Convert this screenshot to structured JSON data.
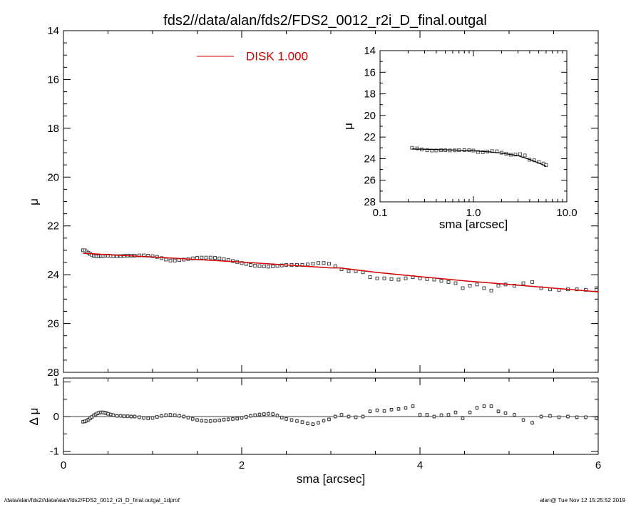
{
  "title": "fds2//data/alan/fds2/FDS2_0012_r2i_D_final.outgal",
  "footer_left": "/data/alan/fds2//data/alan/fds2/FDS2_0012_r2i_D_final.outgal_1dprof",
  "footer_right": "alan@  Tue Nov 12 15:25:52 2019",
  "legend": {
    "label": "DISK  1.000",
    "color": "#d40000"
  },
  "colors": {
    "model": "#d40000",
    "data": "#000000",
    "axes": "#000000"
  },
  "chart_data": [
    {
      "type": "scatter",
      "panel": "main",
      "xlabel": "",
      "ylabel": "μ",
      "xlim": [
        0,
        6
      ],
      "ylim": [
        28,
        14
      ],
      "y_inverted": true,
      "yticks": [
        "14",
        "16",
        "18",
        "20",
        "22",
        "24",
        "26",
        "28"
      ],
      "legend_position": "top-center",
      "series": [
        {
          "name": "",
          "kind": "points",
          "x": [
            0.22,
            0.24,
            0.26,
            0.28,
            0.3,
            0.32,
            0.34,
            0.36,
            0.38,
            0.4,
            0.42,
            0.44,
            0.46,
            0.48,
            0.5,
            0.53,
            0.56,
            0.6,
            0.64,
            0.68,
            0.72,
            0.76,
            0.8,
            0.85,
            0.9,
            0.95,
            1.0,
            1.05,
            1.1,
            1.15,
            1.2,
            1.25,
            1.3,
            1.35,
            1.4,
            1.45,
            1.5,
            1.55,
            1.6,
            1.65,
            1.7,
            1.75,
            1.8,
            1.85,
            1.9,
            1.95,
            2.0,
            2.05,
            2.1,
            2.15,
            2.2,
            2.25,
            2.3,
            2.35,
            2.4,
            2.45,
            2.5,
            2.56,
            2.62,
            2.68,
            2.74,
            2.8,
            2.86,
            2.92,
            2.98,
            3.05,
            3.12,
            3.2,
            3.28,
            3.36,
            3.44,
            3.52,
            3.6,
            3.68,
            3.76,
            3.84,
            3.92,
            4.0,
            4.08,
            4.16,
            4.24,
            4.32,
            4.4,
            4.48,
            4.56,
            4.64,
            4.72,
            4.8,
            4.88,
            4.96,
            5.06,
            5.16,
            5.26,
            5.36,
            5.46,
            5.56,
            5.66,
            5.76,
            5.86,
            5.98
          ],
          "y": [
            23.0,
            23.0,
            23.05,
            23.1,
            23.15,
            23.2,
            23.22,
            23.24,
            23.25,
            23.25,
            23.24,
            23.23,
            23.22,
            23.22,
            23.22,
            23.23,
            23.24,
            23.24,
            23.24,
            23.23,
            23.22,
            23.22,
            23.22,
            23.21,
            23.21,
            23.22,
            23.24,
            23.27,
            23.32,
            23.38,
            23.42,
            23.42,
            23.4,
            23.38,
            23.36,
            23.33,
            23.31,
            23.3,
            23.3,
            23.3,
            23.31,
            23.33,
            23.36,
            23.4,
            23.44,
            23.48,
            23.52,
            23.56,
            23.6,
            23.63,
            23.65,
            23.66,
            23.67,
            23.66,
            23.64,
            23.62,
            23.6,
            23.6,
            23.6,
            23.6,
            23.58,
            23.55,
            23.52,
            23.52,
            23.55,
            23.65,
            23.78,
            23.86,
            23.86,
            23.9,
            24.1,
            24.15,
            24.15,
            24.18,
            24.2,
            24.15,
            24.1,
            24.15,
            24.18,
            24.2,
            24.25,
            24.3,
            24.35,
            24.55,
            24.45,
            24.4,
            24.55,
            24.65,
            24.45,
            24.4,
            24.45,
            24.35,
            24.3,
            24.55,
            24.6,
            24.62,
            24.6,
            24.6,
            24.62,
            24.62
          ]
        },
        {
          "name": "DISK  1.000",
          "kind": "line",
          "x": [
            0.22,
            0.5,
            1.0,
            1.5,
            2.0,
            2.5,
            3.0,
            3.1,
            3.5,
            4.0,
            4.5,
            5.0,
            5.5,
            6.0
          ],
          "y": [
            23.12,
            23.18,
            23.27,
            23.38,
            23.48,
            23.6,
            23.72,
            23.72,
            23.9,
            24.08,
            24.25,
            24.4,
            24.55,
            24.7
          ]
        }
      ]
    },
    {
      "type": "scatter",
      "panel": "residual",
      "xlabel": "sma [arcsec]",
      "ylabel": "Δ μ",
      "xlim": [
        0,
        6
      ],
      "ylim": [
        -1,
        1
      ],
      "xticks": [
        "0",
        "2",
        "4",
        "6"
      ],
      "yticks": [
        "1",
        "0",
        "-1"
      ],
      "series": [
        {
          "name": "",
          "kind": "points",
          "x": [
            0.22,
            0.24,
            0.26,
            0.28,
            0.3,
            0.32,
            0.34,
            0.36,
            0.38,
            0.4,
            0.42,
            0.44,
            0.46,
            0.48,
            0.5,
            0.53,
            0.56,
            0.6,
            0.64,
            0.68,
            0.72,
            0.76,
            0.8,
            0.85,
            0.9,
            0.95,
            1.0,
            1.05,
            1.1,
            1.15,
            1.2,
            1.25,
            1.3,
            1.35,
            1.4,
            1.45,
            1.5,
            1.55,
            1.6,
            1.65,
            1.7,
            1.75,
            1.8,
            1.85,
            1.9,
            1.95,
            2.0,
            2.05,
            2.1,
            2.15,
            2.2,
            2.25,
            2.3,
            2.35,
            2.4,
            2.45,
            2.5,
            2.56,
            2.62,
            2.68,
            2.74,
            2.8,
            2.86,
            2.92,
            2.98,
            3.05,
            3.12,
            3.2,
            3.28,
            3.36,
            3.44,
            3.52,
            3.6,
            3.68,
            3.76,
            3.84,
            3.92,
            4.0,
            4.08,
            4.16,
            4.24,
            4.32,
            4.4,
            4.48,
            4.56,
            4.64,
            4.72,
            4.8,
            4.88,
            4.96,
            5.06,
            5.16,
            5.26,
            5.36,
            5.46,
            5.56,
            5.66,
            5.76,
            5.86,
            5.98
          ],
          "y": [
            -0.15,
            -0.14,
            -0.12,
            -0.09,
            -0.05,
            -0.01,
            0.03,
            0.06,
            0.09,
            0.11,
            0.12,
            0.12,
            0.11,
            0.1,
            0.08,
            0.06,
            0.04,
            0.02,
            0.02,
            0.01,
            0.01,
            0.0,
            0.0,
            -0.02,
            -0.04,
            -0.05,
            -0.04,
            -0.01,
            0.02,
            0.04,
            0.05,
            0.04,
            0.02,
            0.0,
            -0.03,
            -0.07,
            -0.1,
            -0.12,
            -0.13,
            -0.13,
            -0.12,
            -0.11,
            -0.09,
            -0.08,
            -0.07,
            -0.06,
            -0.04,
            -0.01,
            0.02,
            0.04,
            0.06,
            0.07,
            0.08,
            0.07,
            0.03,
            -0.03,
            -0.07,
            -0.1,
            -0.13,
            -0.16,
            -0.2,
            -0.22,
            -0.18,
            -0.12,
            -0.08,
            0.0,
            0.05,
            0.0,
            -0.02,
            0.0,
            0.15,
            0.18,
            0.16,
            0.2,
            0.22,
            0.25,
            0.3,
            0.05,
            0.05,
            0.0,
            0.04,
            0.05,
            0.12,
            -0.05,
            0.12,
            0.25,
            0.3,
            0.3,
            0.15,
            0.1,
            0.05,
            -0.1,
            -0.18,
            0.0,
            0.02,
            -0.02,
            0.0,
            -0.02,
            -0.02,
            -0.05
          ]
        }
      ]
    },
    {
      "type": "scatter",
      "panel": "inset",
      "xlabel": "sma [arcsec]",
      "ylabel": "μ",
      "xscale": "log",
      "xlim": [
        0.1,
        10.0
      ],
      "ylim": [
        28,
        14
      ],
      "xticks": [
        "0.1",
        "1.0",
        "10.0"
      ],
      "yticks": [
        "14",
        "16",
        "18",
        "20",
        "22",
        "24",
        "26",
        "28"
      ],
      "series": [
        {
          "name": "",
          "kind": "points",
          "x": [
            0.22,
            0.25,
            0.28,
            0.32,
            0.36,
            0.4,
            0.45,
            0.5,
            0.56,
            0.63,
            0.7,
            0.8,
            0.9,
            1.0,
            1.12,
            1.26,
            1.41,
            1.58,
            1.78,
            2.0,
            2.24,
            2.51,
            2.82,
            3.16,
            3.55,
            3.98,
            4.47,
            5.01,
            5.62,
            5.98
          ],
          "y": [
            23.0,
            23.05,
            23.15,
            23.22,
            23.25,
            23.24,
            23.22,
            23.22,
            23.24,
            23.23,
            23.22,
            23.21,
            23.22,
            23.25,
            23.38,
            23.4,
            23.35,
            23.3,
            23.32,
            23.45,
            23.55,
            23.64,
            23.62,
            23.58,
            23.7,
            24.1,
            24.15,
            24.3,
            24.45,
            24.6
          ]
        },
        {
          "name": "DISK  1.000",
          "kind": "line",
          "x": [
            0.22,
            0.4,
            0.7,
            1.0,
            1.5,
            2.0,
            3.0,
            4.0,
            5.0,
            6.0
          ],
          "y": [
            23.1,
            23.15,
            23.22,
            23.27,
            23.38,
            23.48,
            23.72,
            24.08,
            24.4,
            24.7
          ]
        }
      ]
    }
  ]
}
